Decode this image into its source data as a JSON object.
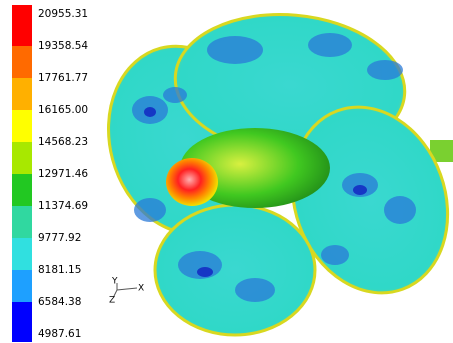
{
  "legend": {
    "labels": [
      "20955.31",
      "19358.54",
      "17761.77",
      "16165.00",
      "14568.23",
      "12971.46",
      "11374.69",
      "9777.92",
      "8181.15",
      "6584.38",
      "4987.61"
    ],
    "colors": [
      "#ff0000",
      "#ff6a00",
      "#ffb000",
      "#ffff00",
      "#a8e800",
      "#22c822",
      "#30d8a0",
      "#30e0e0",
      "#1ea0ff",
      "#0000ff"
    ]
  },
  "triad": {
    "y": "Y",
    "x": "X",
    "z": "Z"
  }
}
